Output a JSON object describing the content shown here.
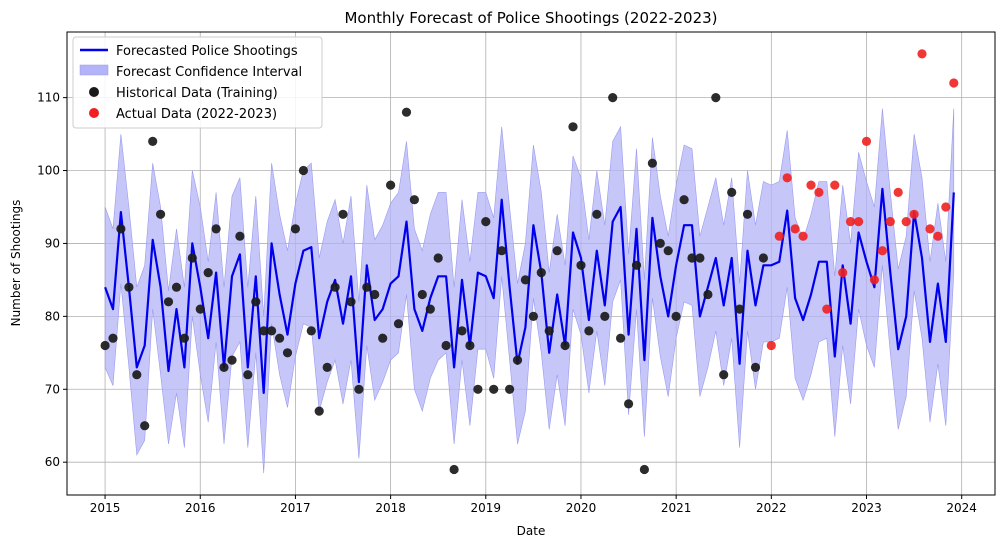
{
  "chart_data": {
    "type": "line",
    "title": "Monthly Forecast of Police Shootings (2022-2023)",
    "xlabel": "Date",
    "ylabel": "Number of Shootings",
    "xlim": [
      2014.6,
      2024.35
    ],
    "ylim": [
      55.5,
      119
    ],
    "x_ticks": [
      2015,
      2016,
      2017,
      2018,
      2019,
      2020,
      2021,
      2022,
      2023,
      2024
    ],
    "y_ticks": [
      60,
      70,
      80,
      90,
      100,
      110
    ],
    "grid": true,
    "legend_position": "top-left",
    "legend": [
      "Forecasted Police Shootings",
      "Forecast Confidence Interval",
      "Historical Data (Training)",
      "Actual Data (2022-2023)"
    ],
    "colors": {
      "forecast": "#0000ee",
      "confidence": "#b3b3f7",
      "historical": "#1a1a1a",
      "actual": "#f02020"
    },
    "series": [
      {
        "name": "Forecasted Police Shootings",
        "kind": "line",
        "x": "monthly from 2015-01 to 2023-12",
        "values": [
          84,
          81,
          94.3,
          84,
          73,
          76,
          90.5,
          84,
          72.5,
          81,
          73,
          90,
          84,
          77,
          86,
          73,
          85.5,
          88.5,
          73,
          85.5,
          69.5,
          90,
          83,
          77.5,
          84.5,
          89,
          89.5,
          77,
          82,
          85,
          79,
          85.5,
          71,
          87,
          79.5,
          81,
          84.5,
          85.5,
          93,
          81,
          78,
          82.5,
          85.5,
          85.5,
          73,
          85,
          76,
          86,
          85.5,
          82.5,
          96,
          84,
          73.5,
          78.5,
          92.5,
          86,
          75,
          83,
          76,
          91.5,
          88,
          79.5,
          89,
          81.5,
          93,
          95,
          77.5,
          92,
          74,
          93.5,
          85.5,
          80,
          87,
          92.5,
          92.5,
          80,
          84,
          88,
          81.5,
          88,
          73.5,
          89,
          81.5,
          87,
          87,
          87.5,
          94.5,
          82.5,
          79.5,
          83,
          87.5,
          87.5,
          74.5,
          87,
          79,
          91.5,
          87.5,
          84,
          97.5,
          86,
          75.5,
          80,
          94.3,
          88,
          76.5,
          84.5,
          76.5,
          97
        ]
      },
      {
        "name": "Forecast Confidence Interval",
        "kind": "band",
        "lower": [
          73,
          70.5,
          84.5,
          73,
          61,
          63,
          81,
          72,
          62.5,
          69.5,
          62,
          80,
          72,
          65.5,
          76.5,
          62.5,
          74.5,
          76.5,
          62,
          75,
          58.5,
          79,
          72,
          67.5,
          74.5,
          79,
          78.5,
          67,
          71,
          74,
          68,
          74,
          60.5,
          76,
          68.5,
          71,
          74,
          75,
          83,
          70,
          67,
          71.5,
          74,
          75,
          62.5,
          74,
          65,
          75.5,
          75.5,
          71.5,
          85.5,
          74,
          62.5,
          67,
          82.5,
          75,
          64.5,
          72,
          65,
          81,
          77.5,
          69.5,
          78,
          70.5,
          82,
          85,
          66.5,
          81,
          63.5,
          82.5,
          74.5,
          69,
          77,
          82,
          81.5,
          69,
          73,
          78,
          70.5,
          77,
          62,
          78,
          70,
          76.5,
          76.5,
          77,
          84,
          71.5,
          68.5,
          72,
          76.5,
          77,
          63.5,
          76,
          68,
          81,
          76,
          73,
          87,
          75,
          64.5,
          69,
          83.5,
          77,
          65.5,
          73.5,
          65,
          86
        ],
        "upper": [
          95,
          92,
          105,
          95,
          84,
          87,
          101,
          95,
          83.5,
          92,
          84,
          100,
          95,
          87.5,
          97,
          84,
          96.5,
          99,
          84,
          96.5,
          80,
          101,
          94,
          89,
          95.5,
          100,
          101,
          88,
          93,
          96,
          90,
          96.5,
          82,
          98,
          90.5,
          92.5,
          95.5,
          97,
          104,
          92,
          89,
          94,
          97,
          97,
          84,
          96,
          87.5,
          97,
          97,
          93.5,
          106,
          95,
          84.5,
          90,
          103.5,
          97,
          86,
          94,
          87,
          102,
          99,
          90.5,
          100,
          92.5,
          104,
          106,
          88.5,
          103,
          85,
          104.5,
          96.5,
          91,
          98,
          103.5,
          103,
          91,
          95,
          99,
          92.5,
          99,
          84.5,
          100,
          92.5,
          98.5,
          98,
          98.5,
          105.5,
          93.5,
          90.5,
          94,
          98.5,
          98.5,
          85.5,
          98,
          90,
          102.5,
          98.5,
          95,
          108.5,
          97,
          86.5,
          91,
          105,
          99,
          87.5,
          95.5,
          87.5,
          108.5
        ]
      },
      {
        "name": "Historical Data (Training)",
        "kind": "scatter",
        "x": "monthly from 2015-01 to 2021-12",
        "values": [
          76,
          77,
          92,
          84,
          72,
          65,
          104,
          94,
          82,
          84,
          77,
          88,
          81,
          86,
          92,
          73,
          74,
          91,
          72,
          82,
          78,
          78,
          77,
          75,
          92,
          100,
          78,
          67,
          73,
          84,
          94,
          82,
          70,
          84,
          83,
          77,
          98,
          79,
          108,
          96,
          83,
          81,
          88,
          76,
          59,
          78,
          76,
          70,
          93,
          70,
          89,
          70,
          74,
          85,
          80,
          86,
          78,
          89,
          76,
          106,
          87,
          78,
          94,
          80,
          110,
          77,
          68,
          87,
          59,
          101,
          90,
          89,
          80,
          96,
          88,
          88,
          83,
          110,
          72,
          97,
          81,
          94,
          73,
          88
        ]
      },
      {
        "name": "Actual Data (2022-2023)",
        "kind": "scatter",
        "x": "monthly from 2022-01 to 2023-12",
        "values": [
          76,
          91,
          99,
          92,
          91,
          98,
          97,
          81,
          98,
          86,
          93,
          93,
          104,
          85,
          89,
          93,
          97,
          93,
          94,
          116,
          92,
          91,
          95,
          112
        ]
      }
    ]
  }
}
